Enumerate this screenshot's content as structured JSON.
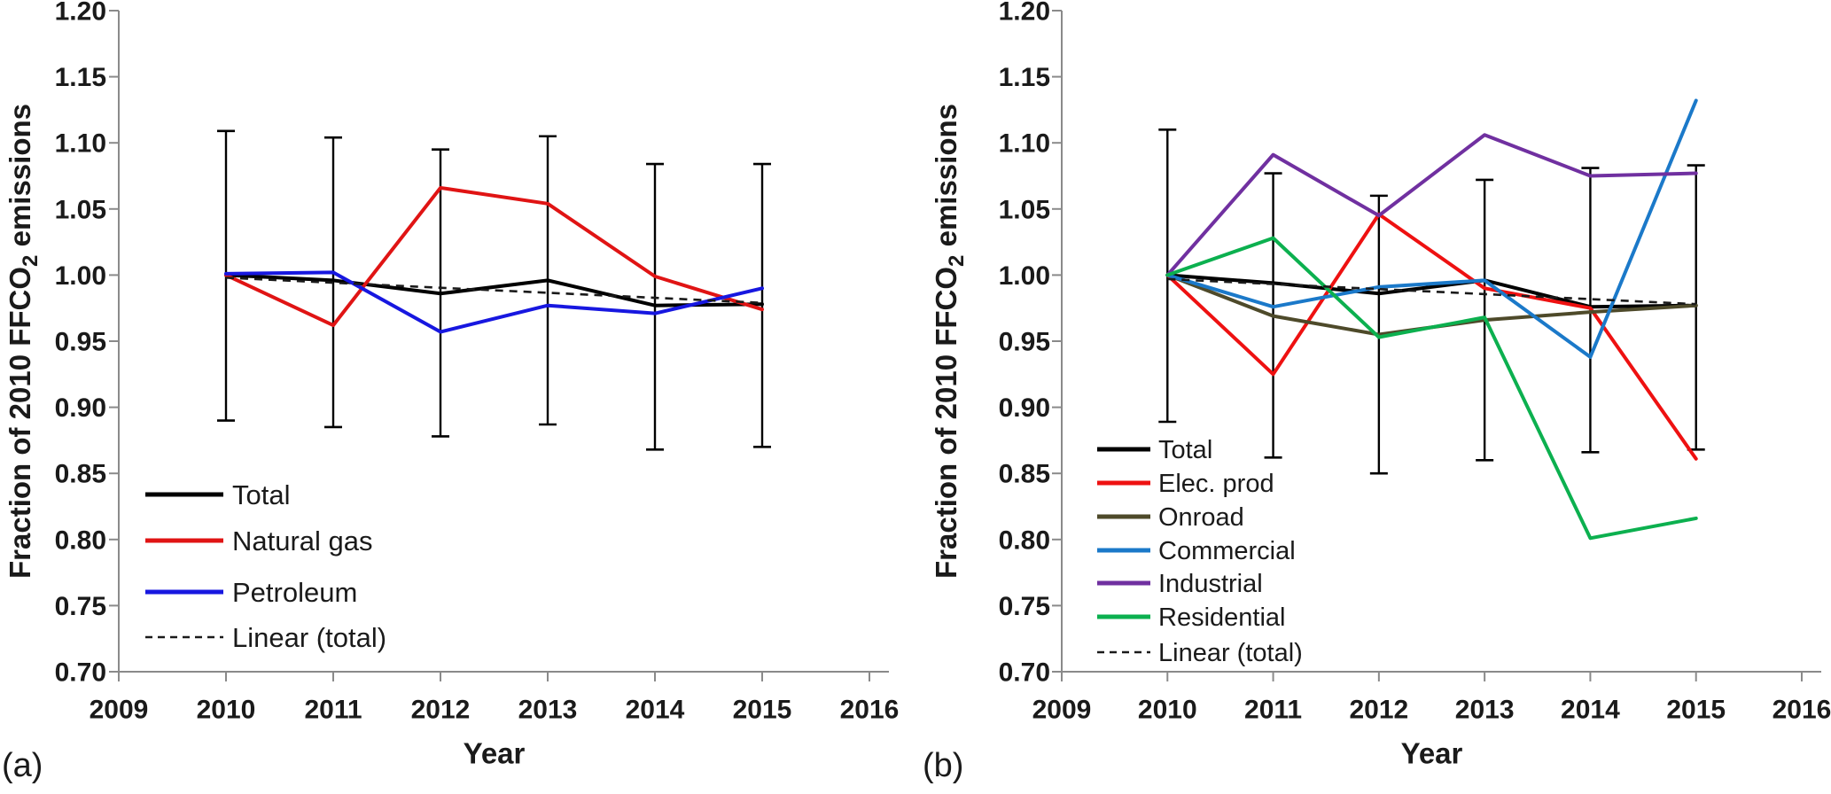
{
  "page": {
    "background": "#ffffff",
    "text_color": "#1a1a1a",
    "axis_color": "#8a8a8a",
    "error_bar_color": "#000000"
  },
  "chart_data": [
    {
      "id": "a",
      "panel_label": "(a)",
      "type": "line",
      "xlabel": "Year",
      "ylabel": "Fraction of 2010 FFCO2 emissions",
      "ylabel_rich": {
        "pre": "Fraction of 2010 FFCO",
        "sub": "2",
        "post": " emissions"
      },
      "xlim": [
        2009,
        2016
      ],
      "ylim": [
        0.7,
        1.2
      ],
      "x": [
        2010,
        2011,
        2012,
        2013,
        2014,
        2015
      ],
      "x_ticks": [
        "2009",
        "2010",
        "2011",
        "2012",
        "2013",
        "2014",
        "2015",
        "2016"
      ],
      "y_ticks": [
        "0.70",
        "0.75",
        "0.80",
        "0.85",
        "0.90",
        "0.95",
        "1.00",
        "1.05",
        "1.10",
        "1.15",
        "1.20"
      ],
      "grid": false,
      "legend_position": "lower-left-inside",
      "series": [
        {
          "name": "Total",
          "color": "#000000",
          "style": "solid",
          "values": [
            1.0,
            0.996,
            0.986,
            0.996,
            0.977,
            0.978
          ]
        },
        {
          "name": "Natural gas",
          "color": "#e01414",
          "style": "solid",
          "values": [
            1.0,
            0.962,
            1.066,
            1.054,
            0.999,
            0.974
          ]
        },
        {
          "name": "Petroleum",
          "color": "#1717e0",
          "style": "solid",
          "values": [
            1.001,
            1.002,
            0.957,
            0.977,
            0.971,
            0.99
          ]
        },
        {
          "name": "Linear (total)",
          "color": "#1a1a1a",
          "style": "dashed",
          "trend_endpoints": [
            0.998,
            0.979
          ]
        }
      ],
      "error_bars": {
        "on": "Total",
        "upper": [
          1.109,
          1.104,
          1.095,
          1.105,
          1.084,
          1.084
        ],
        "lower": [
          0.89,
          0.885,
          0.878,
          0.887,
          0.868,
          0.87
        ]
      }
    },
    {
      "id": "b",
      "panel_label": "(b)",
      "type": "line",
      "xlabel": "Year",
      "ylabel": "Fraction of 2010 FFCO2 emissions",
      "ylabel_rich": {
        "pre": "Fraction of 2010 FFCO",
        "sub": "2",
        "post": " emissions"
      },
      "xlim": [
        2009,
        2016
      ],
      "ylim": [
        0.7,
        1.2
      ],
      "x": [
        2010,
        2011,
        2012,
        2013,
        2014,
        2015
      ],
      "x_ticks": [
        "2009",
        "2010",
        "2011",
        "2012",
        "2013",
        "2014",
        "2015",
        "2016"
      ],
      "y_ticks": [
        "0.70",
        "0.75",
        "0.80",
        "0.85",
        "0.90",
        "0.95",
        "1.00",
        "1.05",
        "1.10",
        "1.15",
        "1.20"
      ],
      "grid": false,
      "legend_position": "lower-left-inside",
      "series": [
        {
          "name": "Total",
          "color": "#000000",
          "style": "solid",
          "values": [
            1.0,
            0.994,
            0.986,
            0.996,
            0.976,
            0.977
          ]
        },
        {
          "name": "Elec. prod",
          "color": "#ee1111",
          "style": "solid",
          "values": [
            1.0,
            0.925,
            1.046,
            0.99,
            0.975,
            0.861
          ]
        },
        {
          "name": "Onroad",
          "color": "#4e4a2a",
          "style": "solid",
          "values": [
            1.0,
            0.969,
            0.955,
            0.966,
            0.972,
            0.977
          ]
        },
        {
          "name": "Commercial",
          "color": "#1b79c9",
          "style": "solid",
          "values": [
            1.0,
            0.976,
            0.991,
            0.996,
            0.938,
            1.132
          ]
        },
        {
          "name": "Industrial",
          "color": "#7030a0",
          "style": "solid",
          "values": [
            1.0,
            1.091,
            1.045,
            1.106,
            1.075,
            1.077
          ]
        },
        {
          "name": "Residential",
          "color": "#0cb04f",
          "style": "solid",
          "values": [
            1.0,
            1.028,
            0.953,
            0.968,
            0.801,
            0.816
          ]
        },
        {
          "name": "Linear (total)",
          "color": "#1a1a1a",
          "style": "dashed",
          "trend_endpoints": [
            0.997,
            0.978
          ]
        }
      ],
      "error_bars": {
        "on": "Total",
        "upper": [
          1.11,
          1.077,
          1.06,
          1.072,
          1.081,
          1.083
        ],
        "lower": [
          0.889,
          0.862,
          0.85,
          0.86,
          0.866,
          0.868
        ]
      }
    }
  ]
}
